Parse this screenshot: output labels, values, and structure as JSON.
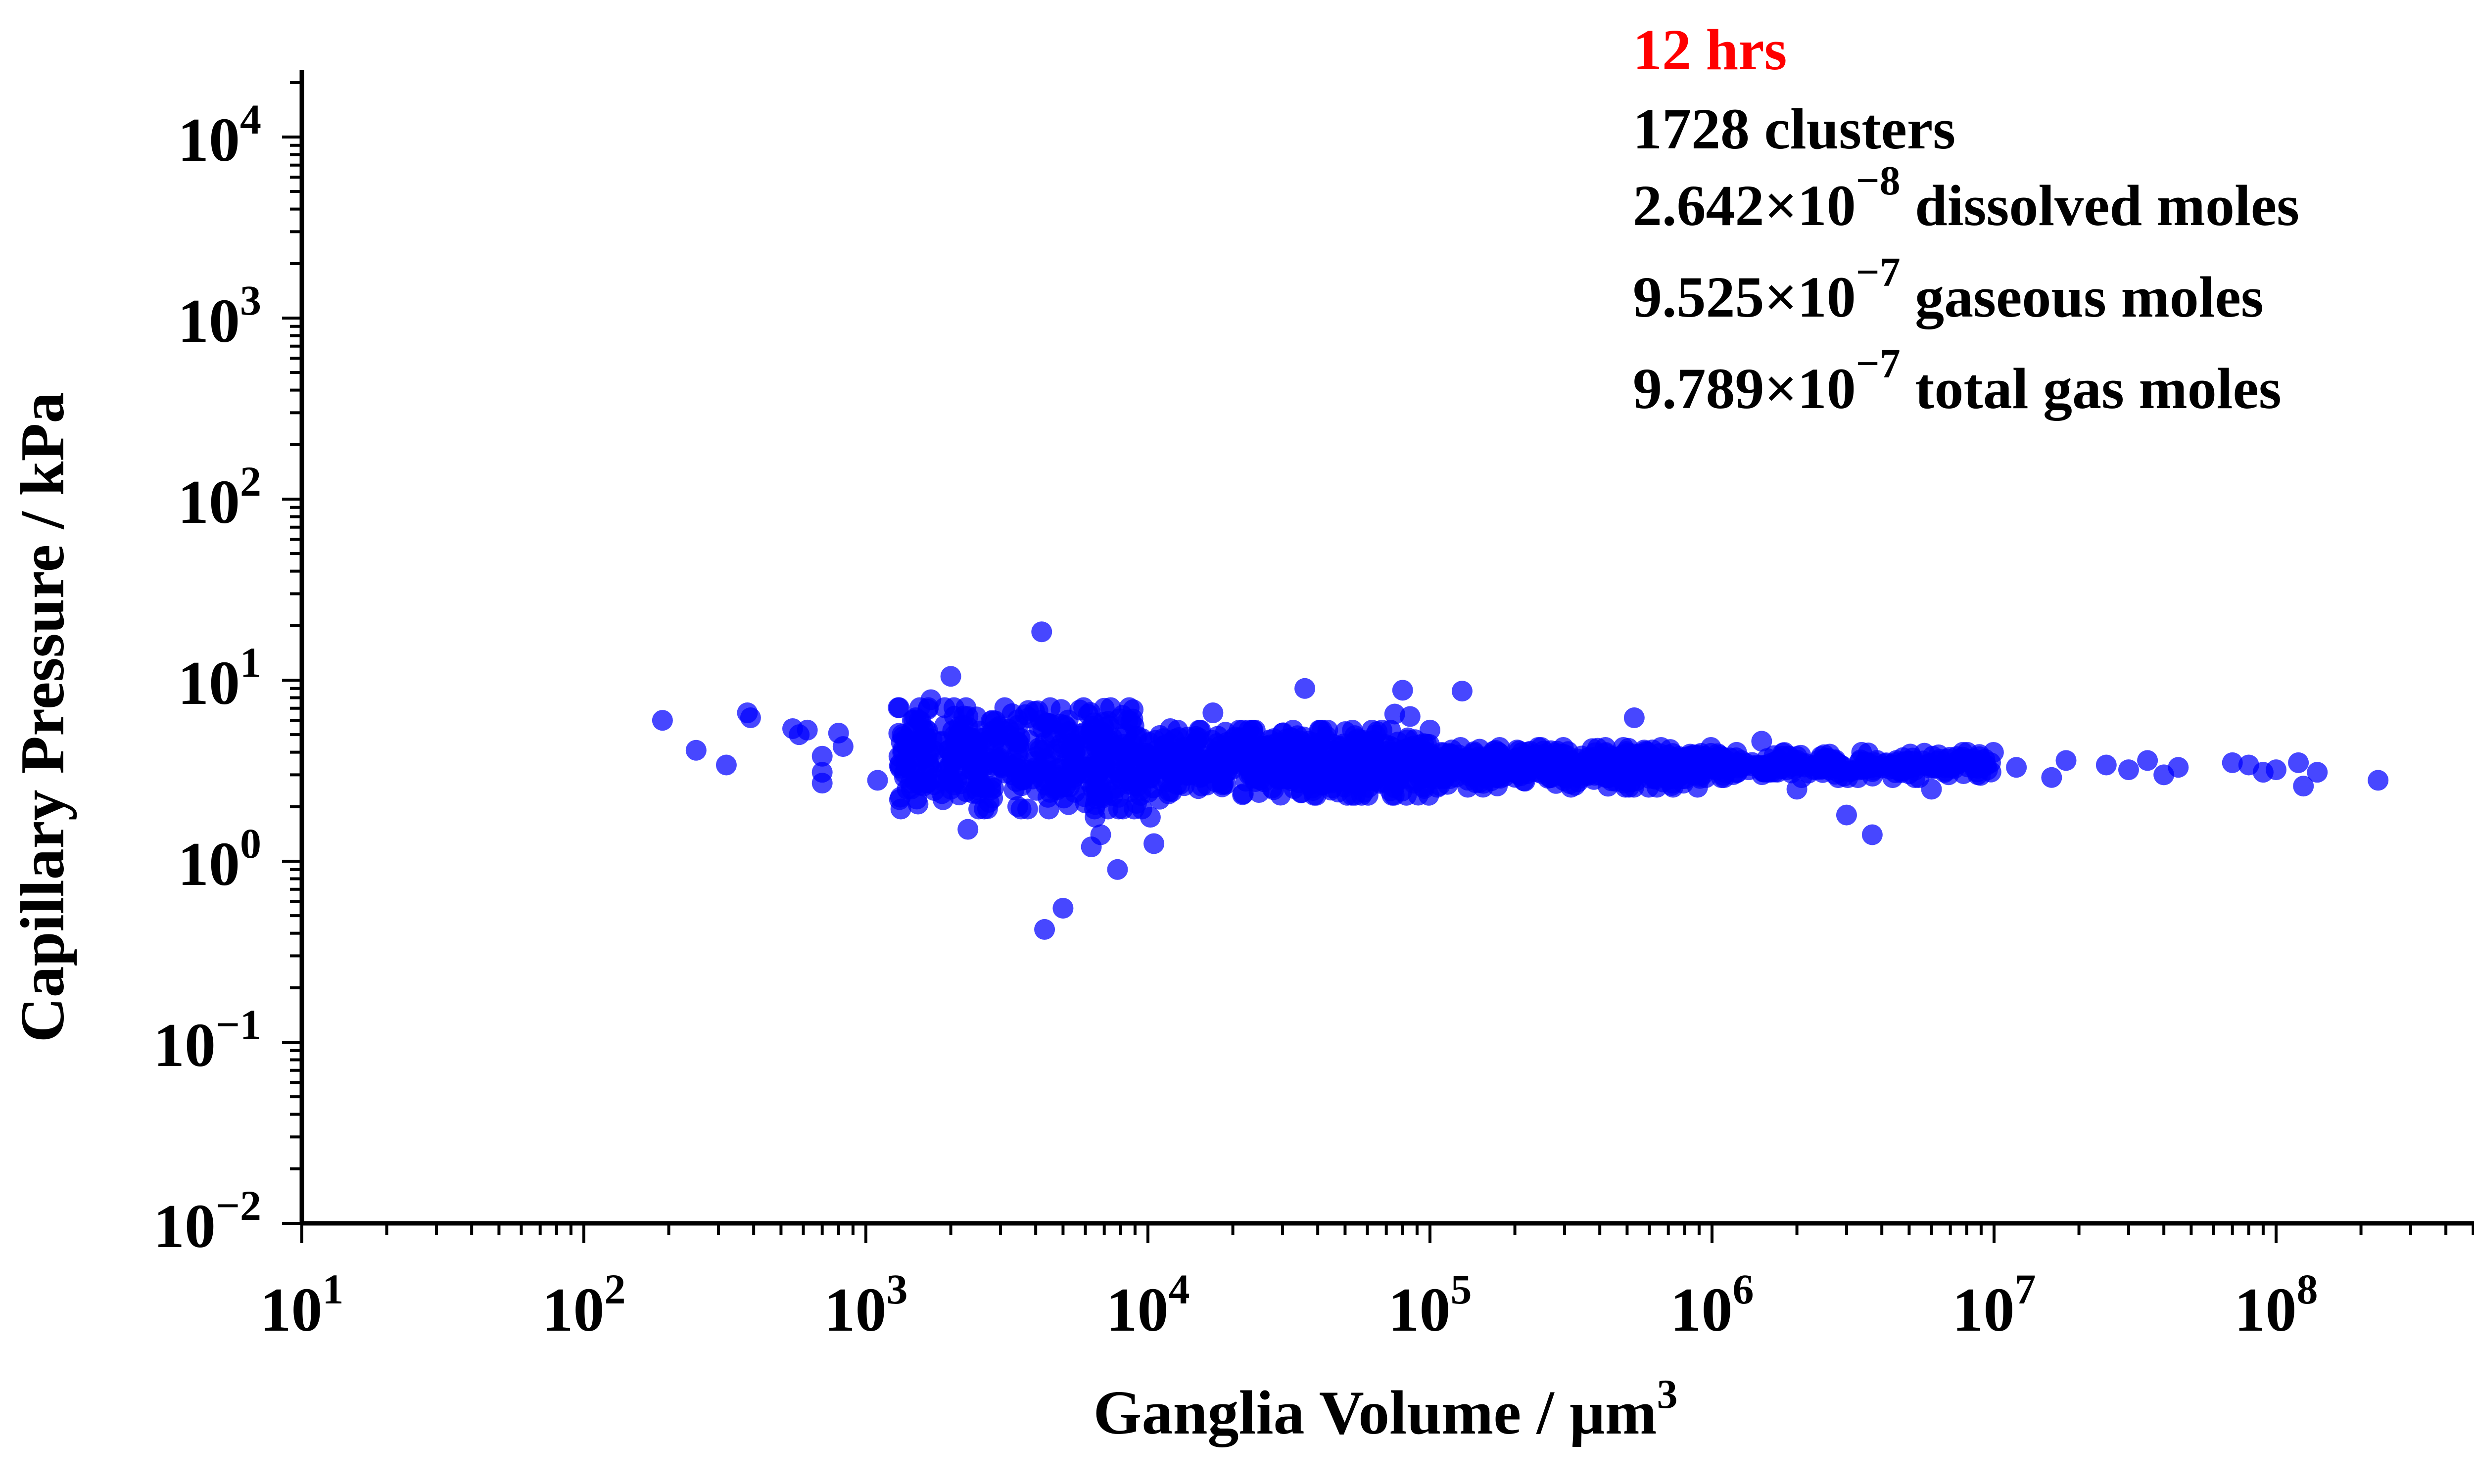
{
  "chart_data": {
    "type": "scatter",
    "xscale": "log",
    "yscale": "log",
    "xlim": [
      10,
      500000000
    ],
    "ylim": [
      0.01,
      20000
    ],
    "xlabel": "Ganglia Volume / μm",
    "xlabel_sup": "3",
    "ylabel": "Capillary Pressure / kPa",
    "x_ticks": [
      {
        "base": "10",
        "exp": "1",
        "value": 10
      },
      {
        "base": "10",
        "exp": "2",
        "value": 100
      },
      {
        "base": "10",
        "exp": "3",
        "value": 1000
      },
      {
        "base": "10",
        "exp": "4",
        "value": 10000
      },
      {
        "base": "10",
        "exp": "5",
        "value": 100000
      },
      {
        "base": "10",
        "exp": "6",
        "value": 1000000
      },
      {
        "base": "10",
        "exp": "7",
        "value": 10000000
      },
      {
        "base": "10",
        "exp": "8",
        "value": 100000000
      }
    ],
    "y_ticks": [
      {
        "base": "10",
        "exp": "−2",
        "value": 0.01
      },
      {
        "base": "10",
        "exp": "−1",
        "value": 0.1
      },
      {
        "base": "10",
        "exp": "0",
        "value": 1
      },
      {
        "base": "10",
        "exp": "1",
        "value": 10
      },
      {
        "base": "10",
        "exp": "2",
        "value": 100
      },
      {
        "base": "10",
        "exp": "3",
        "value": 1000
      },
      {
        "base": "10",
        "exp": "4",
        "value": 10000
      }
    ],
    "grid": false,
    "marker_color": "#0000ff",
    "annotation": {
      "time": "12 hrs",
      "time_color": "#ff0000",
      "clusters": "1728 clusters",
      "lines": [
        {
          "mantissa": "2.642",
          "times": "×",
          "base": "10",
          "exp": "−8",
          "label": "dissolved moles"
        },
        {
          "mantissa": "9.525",
          "times": "×",
          "base": "10",
          "exp": "−7",
          "label": "gaseous moles"
        },
        {
          "mantissa": "9.789",
          "times": "×",
          "base": "10",
          "exp": "−7",
          "label": "total gas moles"
        }
      ]
    },
    "series": [
      {
        "points": [
          [
            190,
            6.0
          ],
          [
            250,
            4.1
          ],
          [
            320,
            3.4
          ],
          [
            380,
            6.6
          ],
          [
            390,
            6.2
          ],
          [
            550,
            5.4
          ],
          [
            580,
            5.0
          ],
          [
            620,
            5.3
          ],
          [
            700,
            3.8
          ],
          [
            700,
            2.7
          ],
          [
            700,
            3.1
          ],
          [
            800,
            5.1
          ],
          [
            830,
            4.3
          ],
          [
            1100,
            2.8
          ],
          [
            1350,
            4.0
          ],
          [
            1400,
            2.5
          ],
          [
            1450,
            5.2
          ],
          [
            1500,
            6.2
          ],
          [
            1550,
            2.8
          ],
          [
            1600,
            2.6
          ],
          [
            1700,
            7.8
          ],
          [
            1900,
            5.6
          ],
          [
            2000,
            10.5
          ],
          [
            2000,
            2.5
          ],
          [
            2300,
            6.3
          ],
          [
            2300,
            1.5
          ],
          [
            2700,
            1.95
          ],
          [
            3100,
            5.2
          ],
          [
            3300,
            3.0
          ],
          [
            4100,
            5.5
          ],
          [
            4200,
            18.5
          ],
          [
            4300,
            0.42
          ],
          [
            4400,
            5.8
          ],
          [
            4500,
            2.4
          ],
          [
            5000,
            0.55
          ],
          [
            5500,
            2.4
          ],
          [
            6000,
            2.1
          ],
          [
            6300,
            1.2
          ],
          [
            6500,
            1.75
          ],
          [
            6800,
            1.4
          ],
          [
            7000,
            7.0
          ],
          [
            7500,
            2.3
          ],
          [
            7800,
            0.9
          ],
          [
            8500,
            6.0
          ],
          [
            9200,
            2.6
          ],
          [
            10200,
            1.75
          ],
          [
            10500,
            1.25
          ],
          [
            11000,
            2.2
          ],
          [
            12000,
            5.4
          ],
          [
            15500,
            2.6
          ],
          [
            17000,
            6.6
          ],
          [
            17500,
            3.9
          ],
          [
            20000,
            4.7
          ],
          [
            25000,
            3.2
          ],
          [
            30000,
            5.1
          ],
          [
            36000,
            9.0
          ],
          [
            43000,
            4.9
          ],
          [
            65000,
            5.2
          ],
          [
            75000,
            6.5
          ],
          [
            80000,
            8.8
          ],
          [
            85000,
            6.3
          ],
          [
            100000,
            5.3
          ],
          [
            130000,
            8.7
          ],
          [
            150000,
            3.1
          ],
          [
            200000,
            3.4
          ],
          [
            300000,
            2.9
          ],
          [
            400000,
            3.6
          ],
          [
            530000,
            6.2
          ],
          [
            1000000,
            3.7
          ],
          [
            1500000,
            4.6
          ],
          [
            2000000,
            2.5
          ],
          [
            3000000,
            1.8
          ],
          [
            3700000,
            1.4
          ],
          [
            4500000,
            3.6
          ],
          [
            6000000,
            2.5
          ],
          [
            7000000,
            3.3
          ],
          [
            9000000,
            3.6
          ],
          [
            12000000,
            3.3
          ],
          [
            16000000,
            2.9
          ],
          [
            18000000,
            3.6
          ],
          [
            25000000,
            3.4
          ],
          [
            30000000,
            3.2
          ],
          [
            35000000,
            3.6
          ],
          [
            40000000,
            3.0
          ],
          [
            45000000,
            3.3
          ],
          [
            70000000,
            3.5
          ],
          [
            80000000,
            3.4
          ],
          [
            90000000,
            3.1
          ],
          [
            100000000,
            3.2
          ],
          [
            120000000,
            3.5
          ],
          [
            125000000,
            2.6
          ],
          [
            140000000,
            3.1
          ],
          [
            230000000,
            2.8
          ]
        ],
        "dense_bands": [
          {
            "x_range": [
              1300,
              10000
            ],
            "y_center": 3.7,
            "y_spread": 0.28,
            "count": 420
          },
          {
            "x_range": [
              10000,
              100000
            ],
            "y_center": 3.5,
            "y_spread": 0.18,
            "count": 560
          },
          {
            "x_range": [
              100000,
              1000000
            ],
            "y_center": 3.3,
            "y_spread": 0.11,
            "count": 430
          },
          {
            "x_range": [
              1000000,
              10000000
            ],
            "y_center": 3.4,
            "y_spread": 0.07,
            "count": 225
          }
        ]
      }
    ]
  }
}
